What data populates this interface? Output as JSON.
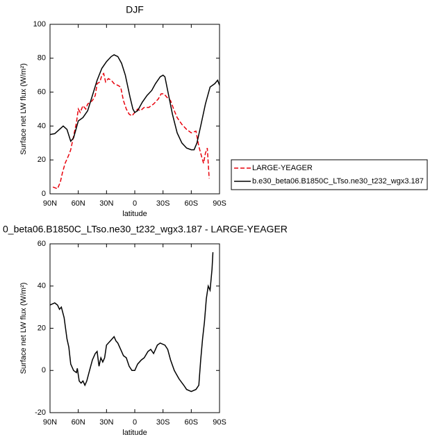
{
  "chart_data": [
    {
      "type": "line",
      "title": "DJF",
      "xlabel": "latitude",
      "ylabel": "Surface net LW flux (W/m²)",
      "legend": "right",
      "xlim": [
        90,
        -90
      ],
      "xticks": [
        {
          "value": 90,
          "label": "90N"
        },
        {
          "value": 60,
          "label": "60N"
        },
        {
          "value": 30,
          "label": "30N"
        },
        0,
        {
          "value": -30,
          "label": "30S"
        },
        {
          "value": -60,
          "label": "60S"
        },
        {
          "value": -90,
          "label": "90S"
        }
      ],
      "ylim": [
        0,
        100
      ],
      "yticks": [
        0,
        20,
        40,
        60,
        80,
        100
      ],
      "series": [
        {
          "name": "LARGE-YEAGER",
          "color": "#e8000b",
          "dash": true,
          "x": [
            87,
            82,
            79,
            77,
            74,
            70,
            68,
            65,
            62,
            60,
            58,
            55,
            52,
            50,
            45,
            42,
            40,
            37,
            35,
            33,
            31,
            28,
            25,
            22,
            18,
            15,
            12,
            9,
            6,
            3,
            0,
            -3,
            -6,
            -10,
            -15,
            -20,
            -25,
            -28,
            -31,
            -34,
            -38,
            -42,
            -45,
            -50,
            -55,
            -60,
            -65,
            -68,
            -71,
            -73,
            -75,
            -77,
            -79
          ],
          "values": [
            4,
            3,
            7,
            12,
            18,
            23,
            26,
            34,
            42,
            50,
            48,
            52,
            50,
            53,
            55,
            58,
            65,
            66,
            70,
            71,
            66,
            68,
            67,
            65,
            64,
            63,
            55,
            50,
            47,
            46,
            48,
            50,
            49,
            51,
            51,
            53,
            56,
            59,
            59,
            57,
            55,
            49,
            45,
            41,
            38,
            36,
            37,
            28,
            22,
            18,
            24,
            27,
            9
          ]
        },
        {
          "name": "b.e30_beta06.B1850C_LTso.ne30_t232_wgx3.187",
          "color": "#000000",
          "dash": false,
          "x": [
            90,
            85,
            80,
            76,
            72,
            68,
            65,
            60,
            55,
            50,
            45,
            40,
            35,
            30,
            25,
            22,
            18,
            14,
            10,
            5,
            2,
            0,
            -3,
            -8,
            -13,
            -18,
            -22,
            -27,
            -30,
            -32,
            -36,
            -40,
            -45,
            -50,
            -55,
            -60,
            -63,
            -66,
            -70,
            -75,
            -80,
            -85,
            -88,
            -90
          ],
          "values": [
            35,
            35.5,
            38,
            40,
            38,
            31,
            33,
            43,
            45,
            49,
            58,
            67,
            74,
            78,
            81,
            82,
            81,
            77,
            70,
            57,
            50,
            48,
            49,
            54,
            58,
            61,
            65,
            69,
            70,
            69,
            58,
            47,
            36,
            30,
            27,
            26,
            26,
            30,
            40,
            53,
            63,
            65,
            67,
            64
          ]
        }
      ]
    },
    {
      "type": "line",
      "title": "0_beta06.B1850C_LTso.ne30_t232_wgx3.187 - LARGE-YEAGER",
      "xlabel": "latitude",
      "ylabel": "Surface net LW flux (W/m²)",
      "xlim": [
        90,
        -90
      ],
      "xticks": [
        {
          "value": 90,
          "label": "90N"
        },
        {
          "value": 60,
          "label": "60N"
        },
        {
          "value": 30,
          "label": "30N"
        },
        0,
        {
          "value": -30,
          "label": "30S"
        },
        {
          "value": -60,
          "label": "60S"
        },
        {
          "value": -90,
          "label": "90S"
        }
      ],
      "ylim": [
        -20,
        60
      ],
      "yticks": [
        -20,
        0,
        20,
        40,
        60
      ],
      "series": [
        {
          "color": "#000000",
          "dash": false,
          "x": [
            90,
            85,
            82,
            80,
            78,
            75,
            72,
            70,
            68,
            65,
            62,
            61,
            59,
            57,
            55,
            53,
            51,
            48,
            45,
            42,
            40,
            38,
            36,
            34,
            32,
            30,
            26,
            22,
            20,
            18,
            15,
            12,
            9,
            6,
            3,
            0,
            -3,
            -7,
            -10,
            -14,
            -17,
            -20,
            -24,
            -27,
            -32,
            -35,
            -38,
            -42,
            -47,
            -52,
            -55,
            -60,
            -65,
            -68,
            -70,
            -72,
            -74,
            -76,
            -78,
            -80,
            -82,
            -83
          ],
          "values": [
            31,
            32,
            31,
            29,
            30,
            25,
            15,
            11,
            3,
            0,
            -1,
            1,
            -5,
            -6,
            -5,
            -7,
            -5,
            0,
            5,
            8,
            9,
            2,
            6,
            4,
            6,
            12,
            14,
            16,
            14,
            13,
            10,
            7,
            6,
            2,
            0,
            0,
            3,
            5,
            6,
            9,
            10,
            8,
            12,
            13,
            12,
            10,
            5,
            0,
            -4,
            -7,
            -9,
            -10,
            -9,
            -7,
            5,
            15,
            23,
            34,
            40,
            38,
            48,
            56
          ]
        }
      ]
    }
  ]
}
